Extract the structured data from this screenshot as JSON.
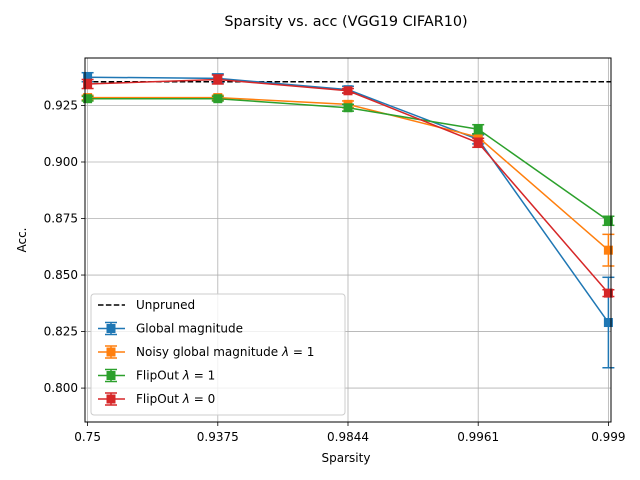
{
  "chart_data": {
    "type": "line",
    "title": "Sparsity vs. acc (VGG19 CIFAR10)",
    "xlabel": "Sparsity",
    "ylabel": "Acc.",
    "x_positions": [
      0,
      1,
      2,
      3,
      4
    ],
    "x_tick_labels": [
      "0.75",
      "0.9375",
      "0.9844",
      "0.9961",
      "0.999"
    ],
    "ylim": [
      0.785,
      0.946
    ],
    "y_ticks": [
      0.8,
      0.825,
      0.85,
      0.875,
      0.9,
      0.925
    ],
    "y_tick_labels": [
      "0.800",
      "0.825",
      "0.850",
      "0.875",
      "0.900",
      "0.925"
    ],
    "grid": true,
    "legend_position": "lower-left",
    "reference_line": {
      "name": "Unpruned",
      "value": 0.9355,
      "color": "#000000",
      "style": "dashed"
    },
    "series": [
      {
        "name": "Global magnitude",
        "color": "#1f77b4",
        "values": [
          0.9375,
          0.937,
          0.932,
          0.91,
          0.829
        ],
        "errors": [
          0.002,
          0.002,
          0.0015,
          0.002,
          0.02
        ]
      },
      {
        "name": "Noisy global magnitude",
        "lambda": "1",
        "color": "#ff7f0e",
        "values": [
          0.9285,
          0.9285,
          0.9255,
          0.911,
          0.861
        ],
        "errors": [
          0.001,
          0.001,
          0.0015,
          0.0015,
          0.007
        ]
      },
      {
        "name": "FlipOut",
        "lambda": "1",
        "color": "#2ca02c",
        "values": [
          0.928,
          0.928,
          0.924,
          0.9145,
          0.874
        ],
        "errors": [
          0.001,
          0.001,
          0.0015,
          0.002,
          0.002
        ]
      },
      {
        "name": "FlipOut",
        "lambda": "0",
        "color": "#d62728",
        "values": [
          0.9345,
          0.9365,
          0.9315,
          0.9085,
          0.842
        ],
        "errors": [
          0.002,
          0.002,
          0.001,
          0.002,
          0.0015
        ]
      }
    ]
  }
}
